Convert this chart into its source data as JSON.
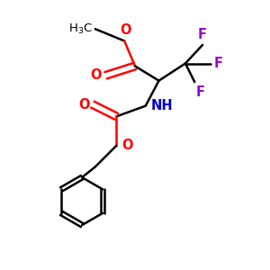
{
  "background": "#ffffff",
  "bond_color": "#000000",
  "bond_width": 1.8,
  "o_color": "#ff0000",
  "n_color": "#0000cd",
  "f_color": "#9900cc",
  "font_size": 9.5,
  "figsize": [
    3.0,
    3.0
  ],
  "dpi": 100,
  "xlim": [
    0,
    10
  ],
  "ylim": [
    0,
    10
  ]
}
